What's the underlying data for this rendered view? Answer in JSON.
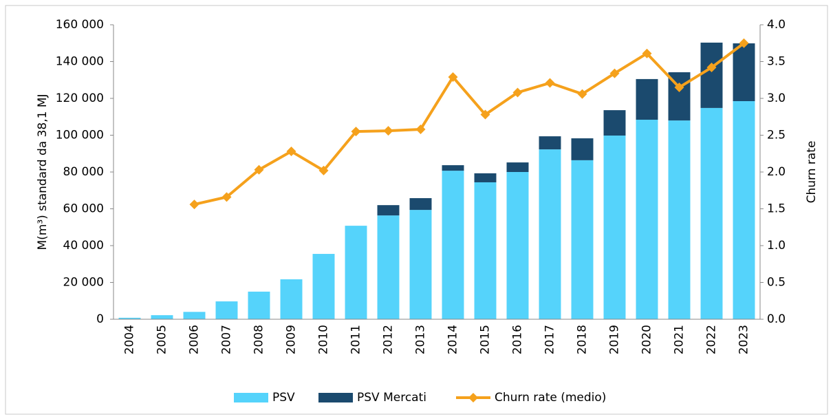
{
  "chart_data": {
    "type": "bar",
    "categories": [
      "2004",
      "2005",
      "2006",
      "2007",
      "2008",
      "2009",
      "2010",
      "2011",
      "2012",
      "2013",
      "2014",
      "2015",
      "2016",
      "2017",
      "2018",
      "2019",
      "2020",
      "2021",
      "2022",
      "2023"
    ],
    "series": [
      {
        "name": "PSV",
        "type": "bar",
        "color": "#55d3fb",
        "values": [
          800,
          2200,
          4000,
          9700,
          15000,
          21700,
          35500,
          50800,
          56400,
          59400,
          80700,
          74400,
          80000,
          92300,
          86400,
          99800,
          108400,
          108000,
          114800,
          118500
        ]
      },
      {
        "name": "PSV Mercati",
        "type": "bar",
        "color": "#1b4a6e",
        "values": [
          0,
          0,
          0,
          0,
          0,
          0,
          0,
          0,
          5600,
          6400,
          3000,
          4900,
          5200,
          7100,
          11900,
          13800,
          22100,
          26200,
          35500,
          31400
        ]
      },
      {
        "name": "Churn rate (medio)",
        "type": "line",
        "axis": "y2",
        "color": "#f5a11c",
        "values": [
          null,
          null,
          1.56,
          1.66,
          2.03,
          2.28,
          2.02,
          2.55,
          2.56,
          2.58,
          3.29,
          2.78,
          3.08,
          3.21,
          3.06,
          3.34,
          3.61,
          3.15,
          3.42,
          3.75
        ]
      }
    ],
    "stacked": true,
    "y_label": "M(m³) standard da 38,1 MJ",
    "y2_label": "Churn rate",
    "ylim": [
      0,
      160000
    ],
    "yticks": [
      0,
      {
        "value": 20000,
        "label": "20 000"
      },
      {
        "value": 40000,
        "label": "40 000"
      },
      {
        "value": 60000,
        "label": "60 000"
      },
      {
        "value": 80000,
        "label": "80 000"
      },
      {
        "value": 100000,
        "label": "100 000"
      },
      {
        "value": 120000,
        "label": "120 000"
      },
      {
        "value": 140000,
        "label": "140 000"
      },
      {
        "value": 160000,
        "label": "160 000"
      }
    ],
    "y2lim": [
      0,
      4
    ],
    "y2ticks": [
      {
        "value": 0,
        "label": "0.0"
      },
      {
        "value": 0.5,
        "label": "0.5"
      },
      {
        "value": 1,
        "label": "1.0"
      },
      {
        "value": 1.5,
        "label": "1.5"
      },
      {
        "value": 2,
        "label": "2.0"
      },
      {
        "value": 2.5,
        "label": "2.5"
      },
      {
        "value": 3,
        "label": "3.0"
      },
      {
        "value": 3.5,
        "label": "3.5"
      },
      {
        "value": 4,
        "label": "4.0"
      }
    ],
    "legend": "bottom",
    "grid": false
  }
}
